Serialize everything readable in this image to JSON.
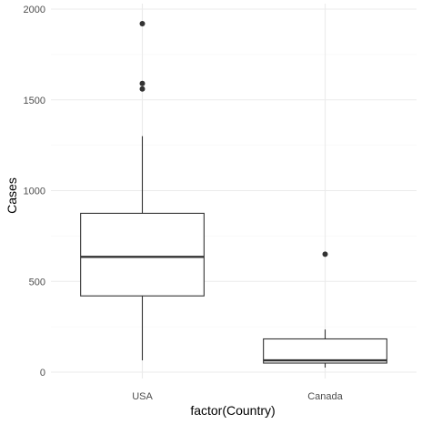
{
  "chart_data": {
    "type": "boxplot",
    "title": "",
    "xlabel": "factor(Country)",
    "ylabel": "Cases",
    "categories": [
      "USA",
      "Canada"
    ],
    "ylim": [
      0,
      2000
    ],
    "yticks": [
      0,
      500,
      1000,
      1500,
      2000
    ],
    "grid": true,
    "boxes": [
      {
        "category": "USA",
        "min": 65,
        "q1": 420,
        "median": 635,
        "q3": 875,
        "max": 1300,
        "outliers": [
          1560,
          1590,
          1920
        ]
      },
      {
        "category": "Canada",
        "min": 25,
        "q1": 50,
        "median": 65,
        "q3": 183,
        "max": 235,
        "outliers": [
          650
        ]
      }
    ],
    "colors": {
      "box_stroke": "#333333",
      "grid_major": "#ebebeb",
      "grid_minor": "#f5f5f5",
      "background": "#ffffff",
      "point": "#333333"
    }
  }
}
